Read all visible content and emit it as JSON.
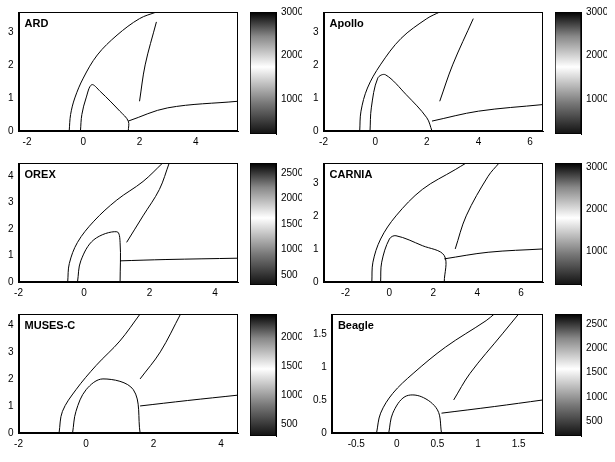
{
  "chart_data": [
    {
      "type": "line",
      "title": "ARD",
      "xlim": [
        -2.3,
        5.5
      ],
      "xticks": [
        -2,
        0,
        2,
        4
      ],
      "ylim": [
        0,
        3.6
      ],
      "yticks": [
        0,
        1,
        2,
        3
      ],
      "colorbar": {
        "range": [
          200,
          3000
        ],
        "ticks": [
          1000,
          2000,
          3000
        ]
      },
      "series": [
        {
          "color": "#000000",
          "x": [
            -0.5,
            -0.45,
            -0.3,
            0,
            0.5,
            1.2,
            2,
            2.6
          ],
          "values": [
            0,
            0.5,
            1,
            1.6,
            2.3,
            2.9,
            3.4,
            3.6
          ]
        },
        {
          "color": "#000000",
          "x": [
            -0.1,
            -0.05,
            0.1,
            0.3,
            0.6,
            1.3,
            1.6,
            1.6
          ],
          "values": [
            0,
            0.5,
            1.0,
            1.4,
            1.2,
            0.6,
            0.3,
            0
          ]
        },
        {
          "color": "#000000",
          "x": [
            1.6,
            3,
            5.5
          ],
          "values": [
            0.3,
            0.7,
            0.9
          ]
        },
        {
          "color": "#000000",
          "x": [
            2,
            2.2,
            2.6
          ],
          "values": [
            0.9,
            2,
            3.3
          ]
        }
      ]
    },
    {
      "type": "line",
      "title": "Apollo",
      "xlim": [
        -2,
        6.5
      ],
      "xticks": [
        -2,
        0,
        2,
        4,
        6
      ],
      "ylim": [
        0,
        3.6
      ],
      "yticks": [
        0,
        1,
        2,
        3
      ],
      "colorbar": {
        "range": [
          200,
          3000
        ],
        "ticks": [
          1000,
          2000,
          3000
        ]
      },
      "series": [
        {
          "color": "#000000",
          "x": [
            -0.6,
            -0.55,
            -0.3,
            0.2,
            1,
            2,
            2.5
          ],
          "values": [
            0,
            0.6,
            1.3,
            2.0,
            2.8,
            3.4,
            3.6
          ]
        },
        {
          "color": "#000000",
          "x": [
            -0.2,
            -0.15,
            0.1,
            0.4,
            1.2,
            2,
            2.2
          ],
          "values": [
            0,
            0.7,
            1.6,
            1.7,
            1.1,
            0.4,
            0
          ]
        },
        {
          "color": "#000000",
          "x": [
            2.2,
            4,
            6.5
          ],
          "values": [
            0.3,
            0.6,
            0.8
          ]
        },
        {
          "color": "#000000",
          "x": [
            2.5,
            3,
            3.8
          ],
          "values": [
            0.9,
            2,
            3.4
          ]
        }
      ]
    },
    {
      "type": "line",
      "title": "OREX",
      "xlim": [
        -2,
        4.7
      ],
      "xticks": [
        -2,
        0,
        2,
        4
      ],
      "ylim": [
        0,
        4.5
      ],
      "yticks": [
        0,
        1,
        2,
        3,
        4
      ],
      "colorbar": {
        "range": [
          300,
          2700
        ],
        "ticks": [
          500,
          1000,
          1500,
          2000,
          2500
        ]
      },
      "series": [
        {
          "color": "#000000",
          "x": [
            -0.5,
            -0.45,
            -0.2,
            0.3,
            1,
            1.8,
            2.4
          ],
          "values": [
            0,
            0.7,
            1.5,
            2.3,
            3.1,
            3.8,
            4.5
          ]
        },
        {
          "color": "#000000",
          "x": [
            -0.2,
            -0.1,
            0.3,
            1.0,
            1.1,
            1.1
          ],
          "values": [
            0,
            0.8,
            1.6,
            1.9,
            1.5,
            0
          ]
        },
        {
          "color": "#000000",
          "x": [
            1.1,
            2.5,
            4.7
          ],
          "values": [
            0.8,
            0.85,
            0.9
          ]
        },
        {
          "color": "#000000",
          "x": [
            1.3,
            1.8,
            2.3,
            2.6
          ],
          "values": [
            1.5,
            2.5,
            3.5,
            4.5
          ]
        }
      ]
    },
    {
      "type": "line",
      "title": "CARNIA",
      "xlim": [
        -3,
        7
      ],
      "xticks": [
        -2,
        0,
        2,
        4,
        6
      ],
      "ylim": [
        0,
        3.6
      ],
      "yticks": [
        0,
        1,
        2,
        3
      ],
      "colorbar": {
        "range": [
          200,
          3100
        ],
        "ticks": [
          1000,
          2000,
          3000
        ]
      },
      "series": [
        {
          "color": "#000000",
          "x": [
            -0.8,
            -0.75,
            -0.4,
            0.3,
            1.5,
            3,
            3.5
          ],
          "values": [
            0,
            0.6,
            1.3,
            2.0,
            2.8,
            3.4,
            3.6
          ]
        },
        {
          "color": "#000000",
          "x": [
            -0.4,
            -0.35,
            0,
            0.3,
            1.5,
            2.5,
            2.5
          ],
          "values": [
            0,
            0.6,
            1.3,
            1.4,
            1.1,
            0.8,
            0
          ]
        },
        {
          "color": "#000000",
          "x": [
            2.5,
            4.5,
            7
          ],
          "values": [
            0.7,
            0.9,
            1.0
          ]
        },
        {
          "color": "#000000",
          "x": [
            3,
            3.5,
            4.5,
            5
          ],
          "values": [
            1.0,
            2,
            3.2,
            3.6
          ]
        }
      ]
    },
    {
      "type": "line",
      "title": "MUSES-C",
      "xlim": [
        -2,
        4.5
      ],
      "xticks": [
        -2,
        0,
        2,
        4
      ],
      "ylim": [
        0,
        4.4
      ],
      "yticks": [
        0,
        1,
        2,
        3,
        4
      ],
      "colorbar": {
        "range": [
          300,
          2400
        ],
        "ticks": [
          500,
          1000,
          1500,
          2000
        ]
      },
      "series": [
        {
          "color": "#000000",
          "x": [
            -0.8,
            -0.7,
            -0.3,
            0.3,
            1,
            1.6
          ],
          "values": [
            0,
            0.8,
            1.6,
            2.5,
            3.4,
            4.4
          ]
        },
        {
          "color": "#000000",
          "x": [
            -0.4,
            -0.3,
            0,
            0.5,
            1.4,
            1.6
          ],
          "values": [
            0,
            0.8,
            1.6,
            2.0,
            1.6,
            0
          ]
        },
        {
          "color": "#000000",
          "x": [
            1.6,
            3,
            4.5
          ],
          "values": [
            1.0,
            1.2,
            1.4
          ]
        },
        {
          "color": "#000000",
          "x": [
            1.6,
            2.2,
            2.8
          ],
          "values": [
            2.0,
            3,
            4.4
          ]
        }
      ]
    },
    {
      "type": "line",
      "title": "Beagle",
      "xlim": [
        -0.8,
        1.8
      ],
      "xticks": [
        -0.5,
        0,
        0.5,
        1,
        1.5
      ],
      "ylim": [
        0,
        1.8
      ],
      "yticks": [
        0,
        0.5,
        1,
        1.5
      ],
      "colorbar": {
        "range": [
          200,
          2700
        ],
        "ticks": [
          500,
          1000,
          1500,
          2000,
          2500
        ]
      },
      "series": [
        {
          "color": "#000000",
          "x": [
            -0.25,
            -0.2,
            -0.05,
            0.2,
            0.6,
            1.1,
            1.2
          ],
          "values": [
            0,
            0.3,
            0.6,
            0.9,
            1.3,
            1.7,
            1.8
          ]
        },
        {
          "color": "#000000",
          "x": [
            -0.1,
            -0.05,
            0.1,
            0.3,
            0.5,
            0.55
          ],
          "values": [
            0,
            0.3,
            0.55,
            0.55,
            0.35,
            0
          ]
        },
        {
          "color": "#000000",
          "x": [
            0.55,
            1.2,
            1.8
          ],
          "values": [
            0.3,
            0.4,
            0.5
          ]
        },
        {
          "color": "#000000",
          "x": [
            0.7,
            0.9,
            1.3,
            1.5
          ],
          "values": [
            0.5,
            0.9,
            1.5,
            1.8
          ]
        }
      ]
    }
  ]
}
